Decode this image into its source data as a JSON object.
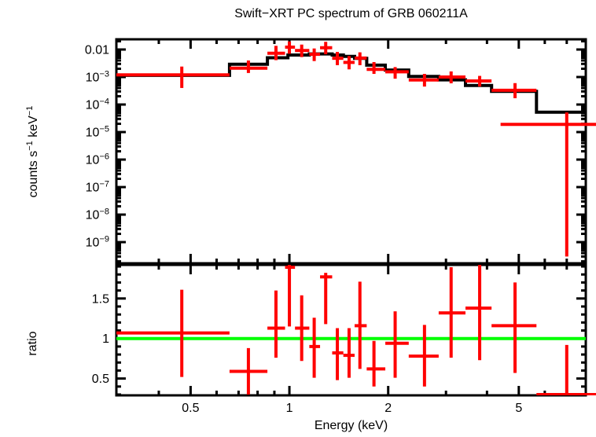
{
  "window": {
    "background": "#ffffff"
  },
  "chart_data": {
    "type": "errorbar",
    "title": "Swift−XRT PC spectrum of GRB 060211A",
    "xlabel": "Energy (keV)",
    "xscale": "log",
    "xlim": [
      0.297,
      8.0
    ],
    "x_ticks_major": [
      {
        "v": 0.5,
        "label": "0.5"
      },
      {
        "v": 1,
        "label": "1"
      },
      {
        "v": 2,
        "label": "2"
      },
      {
        "v": 5,
        "label": "5"
      }
    ],
    "x_ticks_minor": [
      0.4,
      0.6,
      0.7,
      0.8,
      0.9,
      3,
      4,
      6,
      7,
      8
    ],
    "colors": {
      "data": "#ff0000",
      "model": "#000000",
      "reference": "#00ff00",
      "frame": "#000000"
    },
    "panels": [
      {
        "name": "spectrum",
        "ylabel": "counts s−1 keV−1",
        "ylabel_parts": [
          {
            "t": "counts s"
          },
          {
            "t": "−1",
            "sup": true
          },
          {
            "t": " keV"
          },
          {
            "t": "−1",
            "sup": true
          }
        ],
        "yscale": "log",
        "ylim": [
          1.7e-10,
          0.0235
        ],
        "y_ticks_major": [
          {
            "v": 0.01,
            "parts": [
              {
                "t": "0.01"
              }
            ]
          },
          {
            "v": 0.001,
            "parts": [
              {
                "t": "10"
              },
              {
                "t": "−3",
                "sup": true
              }
            ]
          },
          {
            "v": 0.0001,
            "parts": [
              {
                "t": "10"
              },
              {
                "t": "−4",
                "sup": true
              }
            ]
          },
          {
            "v": 1e-05,
            "parts": [
              {
                "t": "10"
              },
              {
                "t": "−5",
                "sup": true
              }
            ]
          },
          {
            "v": 1e-06,
            "parts": [
              {
                "t": "10"
              },
              {
                "t": "−6",
                "sup": true
              }
            ]
          },
          {
            "v": 1e-07,
            "parts": [
              {
                "t": "10"
              },
              {
                "t": "−7",
                "sup": true
              }
            ]
          },
          {
            "v": 1e-08,
            "parts": [
              {
                "t": "10"
              },
              {
                "t": "−8",
                "sup": true
              }
            ]
          },
          {
            "v": 1e-09,
            "parts": [
              {
                "t": "10"
              },
              {
                "t": "−9",
                "sup": true
              }
            ]
          }
        ],
        "model_steps": [
          [
            0.297,
            0.657,
            0.00115
          ],
          [
            0.657,
            0.857,
            0.0029
          ],
          [
            0.857,
            0.99,
            0.005
          ],
          [
            0.99,
            1.15,
            0.0063
          ],
          [
            1.15,
            1.35,
            0.0069
          ],
          [
            1.35,
            1.46,
            0.0063
          ],
          [
            1.46,
            1.58,
            0.0056
          ],
          [
            1.58,
            1.72,
            0.0048
          ],
          [
            1.72,
            1.96,
            0.0027
          ],
          [
            1.96,
            2.31,
            0.0018
          ],
          [
            2.31,
            2.85,
            0.00105
          ],
          [
            2.85,
            3.44,
            0.00079
          ],
          [
            3.44,
            4.13,
            0.00049
          ],
          [
            4.13,
            5.66,
            0.0003
          ],
          [
            5.66,
            8.0,
            5.3e-05
          ]
        ],
        "points": [
          [
            0.47,
            0.297,
            0.657,
            0.0012,
            0.0004,
            0.0024
          ],
          [
            0.75,
            0.657,
            0.857,
            0.0021,
            0.0014,
            0.004
          ],
          [
            0.91,
            0.857,
            0.97,
            0.0073,
            0.0041,
            0.0136
          ],
          [
            1.0,
            0.97,
            1.04,
            0.0122,
            0.007,
            0.0197
          ],
          [
            1.09,
            1.04,
            1.15,
            0.0092,
            0.0053,
            0.0151
          ],
          [
            1.19,
            1.15,
            1.24,
            0.0067,
            0.0038,
            0.0109
          ],
          [
            1.29,
            1.24,
            1.35,
            0.0116,
            0.0067,
            0.019
          ],
          [
            1.4,
            1.35,
            1.46,
            0.0048,
            0.0027,
            0.0082
          ],
          [
            1.52,
            1.46,
            1.58,
            0.0034,
            0.0019,
            0.0058
          ],
          [
            1.64,
            1.58,
            1.72,
            0.0049,
            0.0027,
            0.0079
          ],
          [
            1.81,
            1.72,
            1.96,
            0.0019,
            0.0013,
            0.0035
          ],
          [
            2.1,
            1.96,
            2.31,
            0.00155,
            0.00087,
            0.0023
          ],
          [
            2.58,
            2.31,
            2.85,
            0.00078,
            0.00045,
            0.0013
          ],
          [
            3.11,
            2.85,
            3.44,
            0.001,
            0.00059,
            0.0016
          ],
          [
            3.8,
            3.44,
            4.13,
            0.00072,
            0.00045,
            0.0011
          ],
          [
            4.87,
            4.13,
            5.66,
            0.00033,
            0.00017,
            0.0006
          ],
          [
            7.0,
            4.4,
            8.6,
            1.9e-05,
            3e-10,
            5.2e-05
          ]
        ]
      },
      {
        "name": "ratio",
        "ylabel": "ratio",
        "ylabel_parts": [
          {
            "t": "ratio"
          }
        ],
        "yscale": "linear",
        "ylim": [
          0.29,
          1.92
        ],
        "y_ticks_major": [
          {
            "v": 0.5,
            "parts": [
              {
                "t": "0.5"
              }
            ]
          },
          {
            "v": 1,
            "parts": [
              {
                "t": "1"
              }
            ]
          },
          {
            "v": 1.5,
            "parts": [
              {
                "t": "1.5"
              }
            ]
          }
        ],
        "y_ticks_minor": [
          0.3,
          0.4,
          0.6,
          0.7,
          0.8,
          0.9,
          1.1,
          1.2,
          1.3,
          1.4,
          1.6,
          1.7,
          1.8,
          1.9
        ],
        "reference_line": {
          "y": 1,
          "color": "#00ff00"
        },
        "points": [
          [
            0.47,
            0.297,
            0.657,
            1.07,
            0.52,
            1.61
          ],
          [
            0.75,
            0.657,
            0.857,
            0.59,
            0.3,
            0.88
          ],
          [
            0.91,
            0.857,
            0.97,
            1.13,
            0.76,
            1.6
          ],
          [
            1.0,
            0.97,
            1.04,
            1.89,
            1.15,
            1.95
          ],
          [
            1.09,
            1.04,
            1.15,
            1.13,
            0.72,
            1.54
          ],
          [
            1.19,
            1.15,
            1.24,
            0.9,
            0.51,
            1.26
          ],
          [
            1.29,
            1.24,
            1.35,
            1.77,
            1.18,
            1.82
          ],
          [
            1.4,
            1.35,
            1.46,
            0.82,
            0.48,
            1.13
          ],
          [
            1.52,
            1.46,
            1.58,
            0.79,
            0.51,
            1.13
          ],
          [
            1.64,
            1.58,
            1.72,
            1.16,
            0.62,
            1.71
          ],
          [
            1.81,
            1.72,
            1.96,
            0.62,
            0.4,
            0.97
          ],
          [
            2.1,
            1.96,
            2.31,
            0.94,
            0.51,
            1.34
          ],
          [
            2.58,
            2.31,
            2.85,
            0.78,
            0.4,
            1.17
          ],
          [
            3.11,
            2.85,
            3.44,
            1.32,
            0.76,
            1.89
          ],
          [
            3.8,
            3.44,
            4.13,
            1.38,
            0.73,
            1.95
          ],
          [
            4.87,
            4.13,
            5.66,
            1.16,
            0.57,
            1.7
          ],
          [
            7.0,
            5.66,
            8.6,
            0.3,
            0.27,
            0.92
          ]
        ]
      }
    ]
  }
}
